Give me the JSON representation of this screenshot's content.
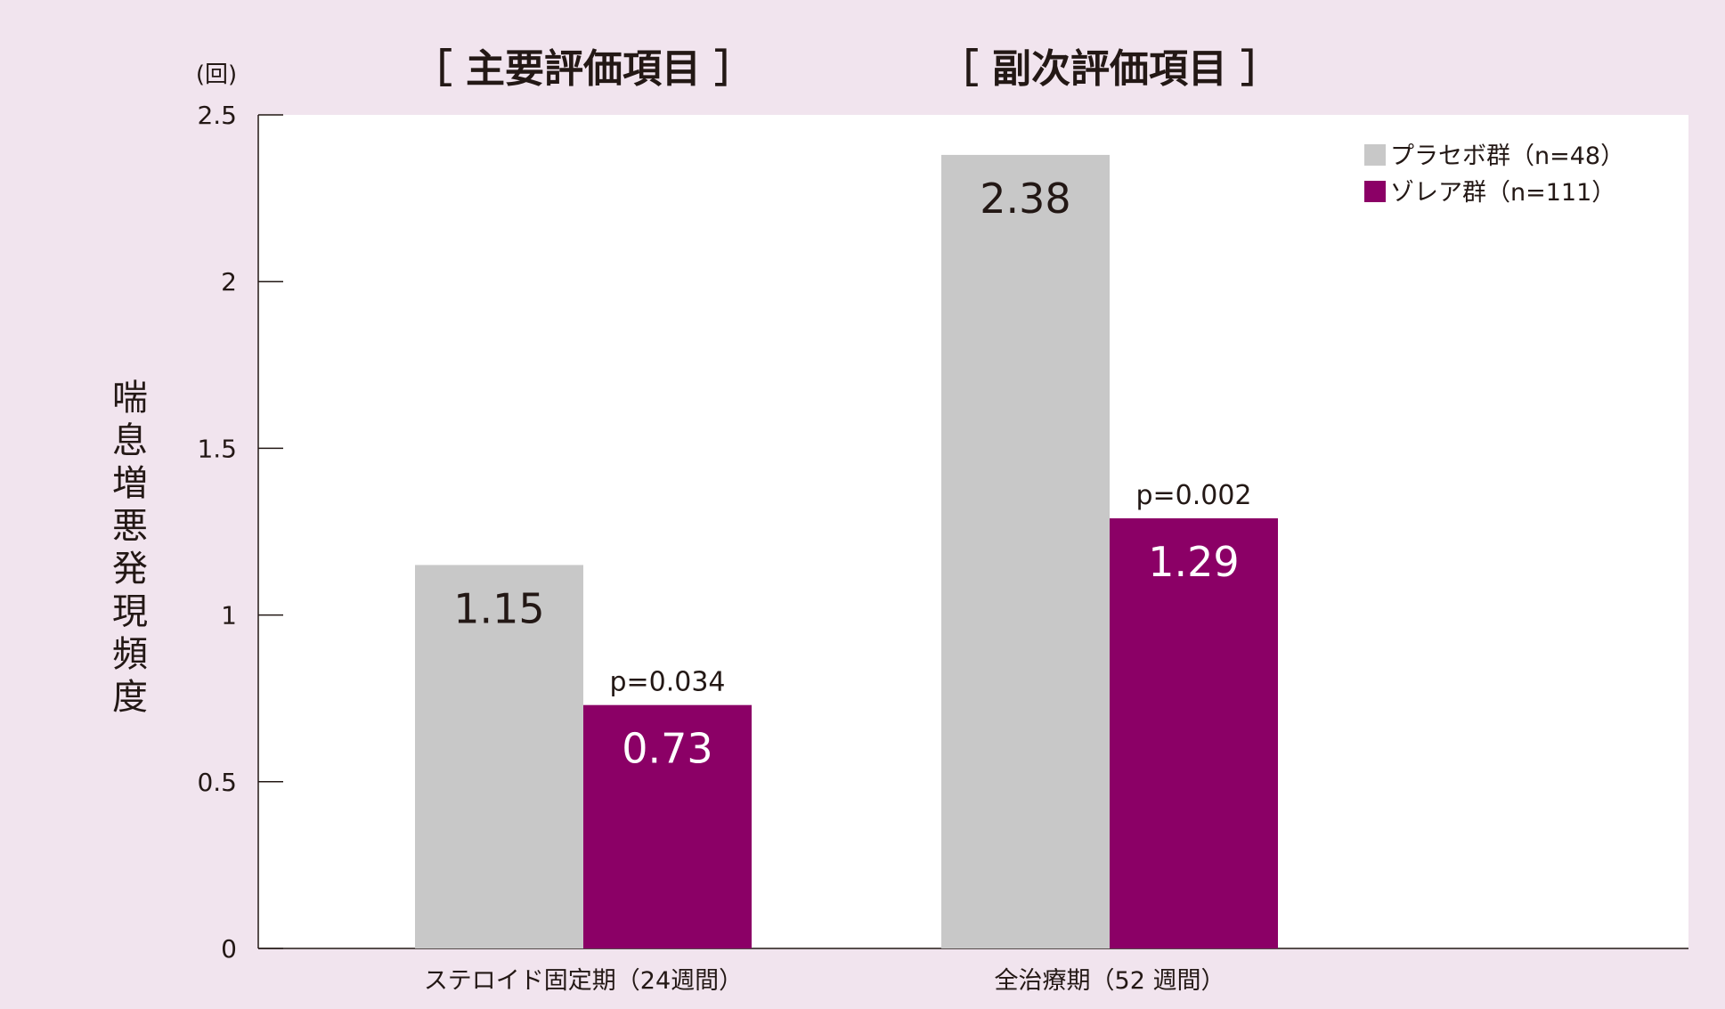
{
  "chart_data": {
    "type": "bar",
    "unit": "(回)",
    "ylabel": "喘息増悪発現頻度",
    "ylim": [
      0,
      2.5
    ],
    "yticks": [
      {
        "value": 0,
        "label": "0"
      },
      {
        "value": 0.5,
        "label": "0.5"
      },
      {
        "value": 1,
        "label": "1"
      },
      {
        "value": 1.5,
        "label": "1.5"
      },
      {
        "value": 2,
        "label": "2"
      },
      {
        "value": 2.5,
        "label": "2.5"
      }
    ],
    "section_titles": [
      "［ 主要評価項目 ］",
      "［ 副次評価項目 ］"
    ],
    "categories": [
      "ステロイド固定期（24週間）",
      "全治療期（52 週間）"
    ],
    "series": [
      {
        "name": "プラセボ群（n=48）",
        "color": "#c8c8c8",
        "values": [
          1.15,
          2.38
        ],
        "value_labels": [
          "1.15",
          "2.38"
        ]
      },
      {
        "name": "ゾレア群（n=111）",
        "color": "#8b0066",
        "values": [
          0.73,
          1.29
        ],
        "value_labels": [
          "0.73",
          "1.29"
        ]
      }
    ],
    "p_values": [
      "p=0.034",
      "p=0.002"
    ],
    "legend_position": "top-right",
    "grid": false
  }
}
